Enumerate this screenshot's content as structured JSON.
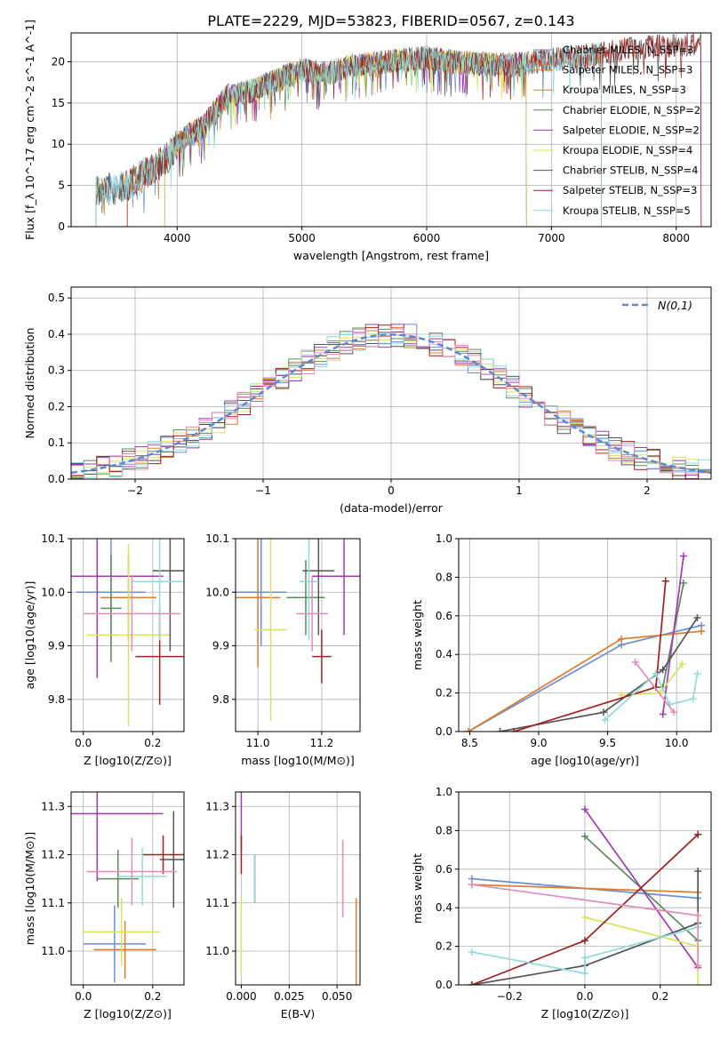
{
  "title": "PLATE=2229, MJD=53823, FIBERID=0567, z=0.143",
  "colors": [
    "#6a8fd8",
    "#e07b2a",
    "#c28b30",
    "#5b8a5b",
    "#a23ab5",
    "#d8e35a",
    "#555555",
    "#a31f1f",
    "#8edcdc",
    "#e58bb8"
  ],
  "chart_data": [
    {
      "id": "spectrum",
      "type": "line",
      "title": "PLATE=2229, MJD=53823, FIBERID=0567, z=0.143",
      "xlabel": "wavelength [Angstrom, rest frame]",
      "ylabel": "Flux [f_λ 10^-17 erg cm^-2 s^-1 A^-1]",
      "xlim": [
        3150,
        8280
      ],
      "ylim": [
        0,
        23.5
      ],
      "xticks": [
        4000,
        5000,
        6000,
        7000,
        8000
      ],
      "yticks": [
        0,
        5,
        10,
        15,
        20
      ],
      "legend": "top-right",
      "trend_x": [
        3350,
        3500,
        3600,
        3700,
        3800,
        3900,
        4000,
        4100,
        4200,
        4300,
        4400,
        4600,
        4800,
        5000,
        5200,
        5400,
        5600,
        5800,
        6000,
        6200,
        6400,
        6600,
        6800,
        7000,
        7200,
        7400,
        7600,
        7800,
        8000,
        8200
      ],
      "trend_y": [
        4.5,
        4.6,
        5.0,
        6.2,
        7.0,
        8.0,
        10.0,
        11.2,
        12.0,
        14.0,
        15.8,
        16.5,
        17.8,
        19.0,
        18.5,
        19.5,
        19.8,
        20.2,
        20.5,
        20.0,
        19.8,
        19.6,
        19.8,
        20.2,
        20.6,
        21.0,
        21.5,
        21.8,
        22.0,
        22.2
      ],
      "series": [
        {
          "name": "Chabrier MILES, N_SSP=3",
          "color": "#6a8fd8",
          "start": 3350,
          "end": 7400
        },
        {
          "name": "Salpeter MILES, N_SSP=3",
          "color": "#e07b2a",
          "start": 3350,
          "end": 7400
        },
        {
          "name": "Kroupa MILES, N_SSP=3",
          "color": "#c28b30",
          "start": 3600,
          "end": 6800
        },
        {
          "name": "Chabrier ELODIE, N_SSP=2",
          "color": "#5b8a5b",
          "start": 3900,
          "end": 6800
        },
        {
          "name": "Salpeter ELODIE, N_SSP=2",
          "color": "#a23ab5",
          "start": 3900,
          "end": 6800
        },
        {
          "name": "Kroupa ELODIE, N_SSP=4",
          "color": "#d8e35a",
          "start": 3900,
          "end": 6800
        },
        {
          "name": "Chabrier STELIB, N_SSP=4",
          "color": "#555555",
          "start": 3350,
          "end": 8200
        },
        {
          "name": "Salpeter STELIB, N_SSP=3",
          "color": "#a31f1f",
          "start": 3600,
          "end": 8200
        },
        {
          "name": "Kroupa STELIB, N_SSP=5",
          "color": "#8edcdc",
          "start": 3350,
          "end": 7400
        }
      ]
    },
    {
      "id": "residuals",
      "type": "histogram",
      "xlabel": "(data-model)/error",
      "ylabel": "Normed distribution",
      "xlim": [
        -2.5,
        2.5
      ],
      "ylim": [
        0,
        0.53
      ],
      "xticks": [
        -2,
        -1,
        0,
        1,
        2
      ],
      "xticklabels": [
        "−2",
        "−1",
        "0",
        "1",
        "2"
      ],
      "yticks": [
        0,
        0.1,
        0.2,
        0.3,
        0.4,
        0.5
      ],
      "yticklabels": [
        "0.0",
        "0.1",
        "0.2",
        "0.3",
        "0.4",
        "0.5"
      ],
      "grid": true,
      "legend": "top-right",
      "curve_label": "N(0,1)",
      "bin_width": 0.1,
      "bin_start": -2.5,
      "colors": [
        "#6a8fd8",
        "#e07b2a",
        "#5b8a5b",
        "#a23ab5",
        "#d8e35a",
        "#555555",
        "#a31f1f",
        "#8edcdc",
        "#e58bb8"
      ]
    },
    {
      "id": "age-vs-Z",
      "type": "errorbar",
      "xlabel": "Z [log10(Z/Z⊙)]",
      "ylabel": "age [log10(age/yr)]",
      "xlim": [
        -0.035,
        0.29
      ],
      "ylim": [
        9.74,
        10.1
      ],
      "xticks": [
        0.0,
        0.2
      ],
      "xticklabels": [
        "0.0",
        "0.2"
      ],
      "yticks": [
        9.8,
        9.9,
        10.0,
        10.1
      ],
      "yticklabels": [
        "9.8",
        "9.9",
        "10.0",
        "10.1"
      ],
      "points": [
        {
          "color": "#6a8fd8",
          "x": 0.08,
          "xerr": 0.1,
          "y": 10.0,
          "yerr": 0.1
        },
        {
          "color": "#e07b2a",
          "x": 0.13,
          "xerr": 0.08,
          "y": 9.99,
          "yerr": 0.08
        },
        {
          "color": "#5b8a5b",
          "x": 0.08,
          "xerr": 0.03,
          "y": 9.97,
          "yerr": 0.1
        },
        {
          "color": "#a23ab5",
          "x": 0.04,
          "xerr": 0.19,
          "y": 10.03,
          "yerr": 0.19
        },
        {
          "color": "#d8e35a",
          "x": 0.13,
          "xerr": 0.12,
          "y": 9.92,
          "yerr": 0.17
        },
        {
          "color": "#555555",
          "x": 0.25,
          "xerr": 0.05,
          "y": 10.04,
          "yerr": 0.15
        },
        {
          "color": "#a31f1f",
          "x": 0.22,
          "xerr": 0.07,
          "y": 9.88,
          "yerr": 0.09
        },
        {
          "color": "#8edcdc",
          "x": 0.22,
          "xerr": 0.08,
          "y": 10.02,
          "yerr": 0.11
        },
        {
          "color": "#e58bb8",
          "x": 0.14,
          "xerr": 0.14,
          "y": 9.96,
          "yerr": 0.07
        }
      ]
    },
    {
      "id": "age-vs-mass",
      "type": "errorbar",
      "xlabel": "mass [log10(M/M⊙)]",
      "ylabel": "",
      "xlim": [
        10.93,
        11.32
      ],
      "ylim": [
        9.74,
        10.1
      ],
      "xticks": [
        11.0,
        11.2
      ],
      "xticklabels": [
        "11.0",
        "11.2"
      ],
      "yticks": [
        9.8,
        9.9,
        10.0,
        10.1
      ],
      "yticklabels": [
        "9.8",
        "9.9",
        "10.0",
        "10.1"
      ],
      "points": [
        {
          "color": "#6a8fd8",
          "x": 11.01,
          "xerr": 0.08,
          "y": 10.0,
          "yerr": 0.1
        },
        {
          "color": "#e07b2a",
          "x": 11.0,
          "xerr": 0.07,
          "y": 9.99,
          "yerr": 0.13
        },
        {
          "color": "#5b8a5b",
          "x": 11.15,
          "xerr": 0.06,
          "y": 9.99,
          "yerr": 0.07
        },
        {
          "color": "#a23ab5",
          "x": 11.27,
          "xerr": 0.1,
          "y": 10.03,
          "yerr": 0.11
        },
        {
          "color": "#d8e35a",
          "x": 11.04,
          "xerr": 0.05,
          "y": 9.93,
          "yerr": 0.17
        },
        {
          "color": "#555555",
          "x": 11.19,
          "xerr": 0.05,
          "y": 10.04,
          "yerr": 0.12
        },
        {
          "color": "#a31f1f",
          "x": 11.2,
          "xerr": 0.03,
          "y": 9.88,
          "yerr": 0.05
        },
        {
          "color": "#8edcdc",
          "x": 11.16,
          "xerr": 0.03,
          "y": 10.02,
          "yerr": 0.11
        },
        {
          "color": "#e58bb8",
          "x": 11.17,
          "xerr": 0.05,
          "y": 9.96,
          "yerr": 0.07
        }
      ]
    },
    {
      "id": "weight-vs-age",
      "type": "line",
      "xlabel": "age [log10(age/yr)]",
      "ylabel": "mass weight",
      "xlim": [
        8.42,
        10.25
      ],
      "ylim": [
        0,
        1
      ],
      "xticks": [
        8.5,
        9.0,
        9.5,
        10.0
      ],
      "xticklabels": [
        "8.5",
        "9.0",
        "9.5",
        "10.0"
      ],
      "yticks": [
        0,
        0.2,
        0.4,
        0.6,
        0.8,
        1.0
      ],
      "yticklabels": [
        "0.0",
        "0.2",
        "0.4",
        "0.6",
        "0.8",
        "1.0"
      ],
      "grid": true,
      "series": [
        {
          "color": "#6a8fd8",
          "x": [
            8.49,
            9.6,
            10.18
          ],
          "y": [
            0.0,
            0.45,
            0.55
          ]
        },
        {
          "color": "#e07b2a",
          "x": [
            8.49,
            9.6,
            10.18
          ],
          "y": [
            0.0,
            0.48,
            0.52
          ]
        },
        {
          "color": "#5b8a5b",
          "x": [
            9.9,
            10.05
          ],
          "y": [
            0.23,
            0.77
          ]
        },
        {
          "color": "#a23ab5",
          "x": [
            9.9,
            10.05
          ],
          "y": [
            0.09,
            0.91
          ]
        },
        {
          "color": "#d8e35a",
          "x": [
            9.6,
            9.88,
            10.04
          ],
          "y": [
            0.19,
            0.2,
            0.35
          ]
        },
        {
          "color": "#555555",
          "x": [
            8.72,
            9.47,
            9.9,
            10.15
          ],
          "y": [
            0.0,
            0.1,
            0.32,
            0.59
          ]
        },
        {
          "color": "#a31f1f",
          "x": [
            8.82,
            9.85,
            9.92
          ],
          "y": [
            0.0,
            0.23,
            0.78
          ]
        },
        {
          "color": "#8edcdc",
          "x": [
            9.48,
            9.85,
            9.95,
            10.12,
            10.15
          ],
          "y": [
            0.06,
            0.3,
            0.14,
            0.17,
            0.3
          ]
        },
        {
          "color": "#e58bb8",
          "x": [
            9.7,
            9.98
          ],
          "y": [
            0.36,
            0.1
          ]
        }
      ]
    },
    {
      "id": "mass-vs-Z",
      "type": "errorbar",
      "xlabel": "Z [log10(Z/Z⊙)]",
      "ylabel": "mass [log10(M/M⊙)]",
      "xlim": [
        -0.035,
        0.29
      ],
      "ylim": [
        10.93,
        11.33
      ],
      "xticks": [
        0.0,
        0.2
      ],
      "xticklabels": [
        "0.0",
        "0.2"
      ],
      "yticks": [
        11.0,
        11.1,
        11.2,
        11.3
      ],
      "yticklabels": [
        "11.0",
        "11.1",
        "11.2",
        "11.3"
      ],
      "points": [
        {
          "color": "#6a8fd8",
          "x": 0.09,
          "xerr": 0.09,
          "y": 11.015,
          "yerr": 0.08
        },
        {
          "color": "#e07b2a",
          "x": 0.12,
          "xerr": 0.09,
          "y": 11.003,
          "yerr": 0.06
        },
        {
          "color": "#5b8a5b",
          "x": 0.1,
          "xerr": 0.06,
          "y": 11.15,
          "yerr": 0.06
        },
        {
          "color": "#a23ab5",
          "x": 0.04,
          "xerr": 0.19,
          "y": 11.285,
          "yerr": 0.14
        },
        {
          "color": "#d8e35a",
          "x": 0.11,
          "xerr": 0.11,
          "y": 11.04,
          "yerr": 0.07
        },
        {
          "color": "#555555",
          "x": 0.26,
          "xerr": 0.04,
          "y": 11.19,
          "yerr": 0.1
        },
        {
          "color": "#a31f1f",
          "x": 0.23,
          "xerr": 0.06,
          "y": 11.2,
          "yerr": 0.04
        },
        {
          "color": "#8edcdc",
          "x": 0.17,
          "xerr": 0.07,
          "y": 11.155,
          "yerr": 0.06
        },
        {
          "color": "#e58bb8",
          "x": 0.14,
          "xerr": 0.13,
          "y": 11.165,
          "yerr": 0.07
        }
      ]
    },
    {
      "id": "mass-vs-ebv",
      "type": "errorbar",
      "xlabel": "E(B-V)",
      "ylabel": "",
      "xlim": [
        -0.003,
        0.062
      ],
      "ylim": [
        10.93,
        11.33
      ],
      "xticks": [
        0.0,
        0.025,
        0.05
      ],
      "xticklabels": [
        "0.000",
        "0.025",
        "0.050"
      ],
      "yticks": [
        11.0,
        11.1,
        11.2,
        11.3
      ],
      "yticklabels": [
        "11.0",
        "11.1",
        "11.2",
        "11.3"
      ],
      "points": [
        {
          "color": "#a23ab5",
          "x": 0.0,
          "xerr": 0,
          "y": 11.27,
          "yerr": 0.06
        },
        {
          "color": "#a31f1f",
          "x": 0.0,
          "xerr": 0,
          "y": 11.2,
          "yerr": 0.04
        },
        {
          "color": "#d8e35a",
          "x": 0.0,
          "xerr": 0,
          "y": 11.03,
          "yerr": 0.08
        },
        {
          "color": "#555555",
          "x": 0.007,
          "xerr": 0,
          "y": 11.15,
          "yerr": 0.05
        },
        {
          "color": "#8edcdc",
          "x": 0.007,
          "xerr": 0,
          "y": 11.15,
          "yerr": 0.05
        },
        {
          "color": "#e58bb8",
          "x": 0.053,
          "xerr": 0,
          "y": 11.15,
          "yerr": 0.08
        },
        {
          "color": "#e07b2a",
          "x": 0.06,
          "xerr": 0,
          "y": 11.02,
          "yerr": 0.09
        }
      ]
    },
    {
      "id": "weight-vs-Z",
      "type": "line",
      "xlabel": "Z [log10(Z/Z⊙)]",
      "ylabel": "mass weight",
      "xlim": [
        -0.335,
        0.335
      ],
      "ylim": [
        0,
        1
      ],
      "xticks": [
        -0.2,
        0.0,
        0.2
      ],
      "xticklabels": [
        "−0.2",
        "0.0",
        "0.2"
      ],
      "yticks": [
        0,
        0.2,
        0.4,
        0.6,
        0.8,
        1.0
      ],
      "yticklabels": [
        "0.0",
        "0.2",
        "0.4",
        "0.6",
        "0.8",
        "1.0"
      ],
      "grid": true,
      "series": [
        {
          "color": "#6a8fd8",
          "x": [
            -0.3,
            0.3
          ],
          "y": [
            0.55,
            0.45
          ]
        },
        {
          "color": "#e07b2a",
          "x": [
            -0.3,
            0.3
          ],
          "y": [
            0.52,
            0.48
          ]
        },
        {
          "color": "#5b8a5b",
          "x": [
            0.0,
            0.3
          ],
          "y": [
            0.77,
            0.23
          ]
        },
        {
          "color": "#a23ab5",
          "x": [
            0.0,
            0.3
          ],
          "y": [
            0.91,
            0.09
          ]
        },
        {
          "color": "#d8e35a",
          "x": [
            0.0,
            0.3,
            0.3
          ],
          "y": [
            0.35,
            0.2,
            0.0
          ]
        },
        {
          "color": "#555555",
          "x": [
            -0.3,
            0.0,
            0.3,
            0.3
          ],
          "y": [
            0.0,
            0.1,
            0.32,
            0.59
          ]
        },
        {
          "color": "#a31f1f",
          "x": [
            -0.3,
            0.0,
            0.3
          ],
          "y": [
            0.0,
            0.23,
            0.78
          ]
        },
        {
          "color": "#8edcdc",
          "x": [
            -0.3,
            0.0,
            0.0,
            0.3
          ],
          "y": [
            0.17,
            0.06,
            0.14,
            0.3
          ]
        },
        {
          "color": "#e58bb8",
          "x": [
            -0.3,
            0.3,
            0.3
          ],
          "y": [
            0.52,
            0.36,
            0.1
          ]
        }
      ]
    }
  ]
}
